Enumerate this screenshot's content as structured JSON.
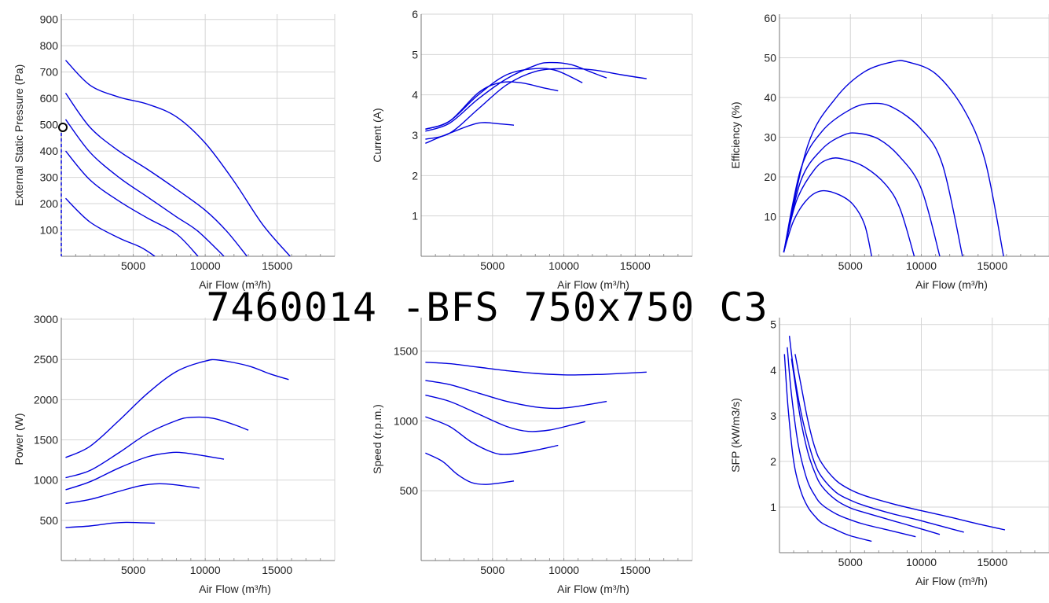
{
  "title": "7460014 -BFS 750x750 C3",
  "colors": {
    "curve": "#0000dd",
    "grid": "#d4d4d4",
    "axis": "#777777",
    "text": "#222222"
  },
  "chart_data": [
    {
      "id": "pressure",
      "type": "line",
      "title": "",
      "xlabel": "Air Flow (m³/h)",
      "ylabel": "External Static Pressure (Pa)",
      "xlim": [
        0,
        19000
      ],
      "ylim": [
        0,
        920
      ],
      "xticks": [
        5000,
        10000,
        15000
      ],
      "yticks": [
        100,
        200,
        300,
        400,
        500,
        600,
        700,
        800,
        900
      ],
      "xgrid": [
        5000,
        10000,
        15000,
        19000
      ],
      "ygrid": [
        100,
        200,
        300,
        400,
        500,
        600,
        700,
        800,
        900
      ],
      "grid": true,
      "operating_point": {
        "x": 0,
        "y": 490
      },
      "series": [
        {
          "x": [
            300,
            2000,
            4000,
            6000,
            8000,
            10000,
            12000,
            14000,
            15900
          ],
          "y": [
            745,
            650,
            605,
            578,
            530,
            430,
            285,
            120,
            0
          ]
        },
        {
          "x": [
            300,
            2000,
            4000,
            6000,
            8000,
            10000,
            11500,
            12900
          ],
          "y": [
            620,
            490,
            400,
            330,
            255,
            175,
            95,
            0
          ]
        },
        {
          "x": [
            300,
            2000,
            4000,
            6000,
            8000,
            9500,
            11300
          ],
          "y": [
            520,
            395,
            300,
            225,
            150,
            95,
            0
          ]
        },
        {
          "x": [
            300,
            2000,
            4000,
            6000,
            8000,
            9500
          ],
          "y": [
            400,
            290,
            210,
            145,
            85,
            0
          ]
        },
        {
          "x": [
            300,
            2000,
            4000,
            5500,
            6500
          ],
          "y": [
            220,
            130,
            70,
            35,
            0
          ]
        }
      ]
    },
    {
      "id": "current",
      "type": "line",
      "title": "",
      "xlabel": "Air Flow (m³/h)",
      "ylabel": "Current (A)",
      "xlim": [
        0,
        19000
      ],
      "ylim": [
        0,
        6
      ],
      "xticks": [
        5000,
        10000,
        15000
      ],
      "yticks": [
        1,
        2,
        3,
        4,
        5,
        6
      ],
      "xgrid": [
        5000,
        10000,
        15000,
        19000
      ],
      "ygrid": [
        1,
        2,
        3,
        4,
        5,
        6
      ],
      "grid": true,
      "series": [
        {
          "x": [
            300,
            2000,
            4000,
            6000,
            8000,
            10000,
            12000,
            14000,
            15800
          ],
          "y": [
            2.9,
            3.05,
            3.65,
            4.25,
            4.58,
            4.65,
            4.62,
            4.5,
            4.4
          ]
        },
        {
          "x": [
            300,
            2000,
            4000,
            6000,
            8000,
            9000,
            10500,
            12000,
            13000
          ],
          "y": [
            3.1,
            3.3,
            3.9,
            4.4,
            4.73,
            4.8,
            4.75,
            4.55,
            4.42
          ]
        },
        {
          "x": [
            300,
            2000,
            4000,
            6000,
            8000,
            9500,
            11300
          ],
          "y": [
            3.15,
            3.35,
            4.0,
            4.5,
            4.65,
            4.6,
            4.3
          ]
        },
        {
          "x": [
            300,
            2000,
            4000,
            5500,
            7000,
            8500,
            9600
          ],
          "y": [
            3.15,
            3.35,
            4.05,
            4.3,
            4.3,
            4.18,
            4.1
          ]
        },
        {
          "x": [
            300,
            2000,
            4000,
            5500,
            6500
          ],
          "y": [
            2.8,
            3.05,
            3.3,
            3.28,
            3.25
          ]
        }
      ]
    },
    {
      "id": "efficiency",
      "type": "line",
      "title": "",
      "xlabel": "Air Flow (m³/h)",
      "ylabel": "Efficiency (%)",
      "xlim": [
        0,
        19000
      ],
      "ylim": [
        0,
        61
      ],
      "xticks": [
        5000,
        10000,
        15000
      ],
      "yticks": [
        10,
        20,
        30,
        40,
        50,
        60
      ],
      "xgrid": [
        5000,
        10000,
        15000,
        19000
      ],
      "ygrid": [
        10,
        20,
        30,
        40,
        50,
        60
      ],
      "grid": true,
      "series": [
        {
          "x": [
            300,
            2000,
            4000,
            6000,
            8000,
            9000,
            11000,
            13000,
            14500,
            15800
          ],
          "y": [
            1,
            28,
            40,
            46.5,
            49,
            49,
            46,
            37,
            24,
            0
          ]
        },
        {
          "x": [
            300,
            1500,
            3000,
            5000,
            6500,
            8000,
            10000,
            11500,
            12900
          ],
          "y": [
            1,
            22,
            31.5,
            37,
            38.5,
            37.5,
            32,
            23,
            0
          ]
        },
        {
          "x": [
            300,
            1500,
            3000,
            4500,
            5500,
            7000,
            8500,
            10000,
            11300
          ],
          "y": [
            1,
            19,
            27,
            30.5,
            31,
            29.5,
            25,
            17,
            0
          ]
        },
        {
          "x": [
            300,
            1200,
            2500,
            3500,
            4500,
            6000,
            7500,
            8500,
            9500
          ],
          "y": [
            1,
            14,
            22,
            24.5,
            24.5,
            22.5,
            18,
            12,
            0
          ]
        },
        {
          "x": [
            300,
            1000,
            2000,
            3000,
            4200,
            5200,
            6000,
            6500
          ],
          "y": [
            1,
            9,
            14.5,
            16.5,
            15.5,
            13,
            8,
            0
          ]
        }
      ]
    },
    {
      "id": "power",
      "type": "line",
      "title": "",
      "xlabel": "Air Flow (m³/h)",
      "ylabel": "Power (W)",
      "xlim": [
        0,
        19000
      ],
      "ylim": [
        0,
        3020
      ],
      "xticks": [
        5000,
        10000,
        15000
      ],
      "yticks": [
        500,
        1000,
        1500,
        2000,
        2500,
        3000
      ],
      "xgrid": [
        5000,
        10000,
        15000,
        19000
      ],
      "ygrid": [
        500,
        1000,
        1500,
        2000,
        2500,
        3000
      ],
      "grid": true,
      "series": [
        {
          "x": [
            300,
            2000,
            4000,
            6000,
            8000,
            10000,
            11000,
            13000,
            14500,
            15800
          ],
          "y": [
            1280,
            1420,
            1740,
            2080,
            2350,
            2480,
            2490,
            2420,
            2320,
            2250
          ]
        },
        {
          "x": [
            300,
            2000,
            4000,
            6000,
            8000,
            9000,
            10500,
            12000,
            13000
          ],
          "y": [
            1030,
            1120,
            1340,
            1580,
            1740,
            1780,
            1770,
            1690,
            1620
          ]
        },
        {
          "x": [
            300,
            2000,
            4000,
            6000,
            7500,
            8500,
            10000,
            11300
          ],
          "y": [
            880,
            980,
            1150,
            1290,
            1340,
            1340,
            1300,
            1260
          ]
        },
        {
          "x": [
            300,
            2000,
            4000,
            5500,
            6800,
            8000,
            9600
          ],
          "y": [
            710,
            760,
            860,
            930,
            955,
            940,
            900
          ]
        },
        {
          "x": [
            300,
            2000,
            3500,
            4500,
            5500,
            6500
          ],
          "y": [
            410,
            430,
            465,
            475,
            470,
            465
          ]
        }
      ]
    },
    {
      "id": "speed",
      "type": "line",
      "title": "",
      "xlabel": "Air Flow (m³/h)",
      "ylabel": "Speed (r.p.m.)",
      "xlim": [
        0,
        19000
      ],
      "ylim": [
        0,
        1740
      ],
      "xticks": [
        5000,
        10000,
        15000
      ],
      "yticks": [
        500,
        1000,
        1500
      ],
      "xgrid": [
        5000,
        10000,
        15000,
        19000
      ],
      "ygrid": [
        500,
        1000,
        1500
      ],
      "grid": true,
      "series": [
        {
          "x": [
            300,
            2000,
            4000,
            6000,
            8000,
            10000,
            11000,
            13000,
            15800
          ],
          "y": [
            1420,
            1410,
            1385,
            1360,
            1340,
            1330,
            1330,
            1335,
            1350
          ]
        },
        {
          "x": [
            300,
            2000,
            4000,
            6000,
            8000,
            9500,
            11000,
            13000
          ],
          "y": [
            1290,
            1260,
            1200,
            1140,
            1100,
            1090,
            1105,
            1140
          ]
        },
        {
          "x": [
            300,
            2000,
            4000,
            6000,
            7500,
            9000,
            10500,
            11500
          ],
          "y": [
            1185,
            1140,
            1050,
            960,
            925,
            935,
            970,
            995
          ]
        },
        {
          "x": [
            300,
            2000,
            3500,
            5000,
            6000,
            7500,
            9600
          ],
          "y": [
            1030,
            960,
            850,
            775,
            760,
            780,
            825
          ]
        },
        {
          "x": [
            300,
            1500,
            2500,
            3500,
            4500,
            5500,
            6500
          ],
          "y": [
            770,
            710,
            620,
            560,
            545,
            555,
            570
          ]
        }
      ]
    },
    {
      "id": "sfp",
      "type": "line",
      "title": "",
      "xlabel": "Air Flow (m³/h)",
      "ylabel": "SFP (kW/m3/s)",
      "xlim": [
        0,
        19000
      ],
      "ylim": [
        0,
        5.15
      ],
      "xticks": [
        5000,
        10000,
        15000
      ],
      "yticks": [
        1,
        2,
        3,
        4,
        5
      ],
      "xgrid": [
        5000,
        10000,
        15000,
        19000
      ],
      "ygrid": [
        1,
        2,
        3,
        4,
        5
      ],
      "grid": true,
      "series": [
        {
          "x": [
            1100,
            1500,
            2000,
            2500,
            3000,
            4000,
            5000,
            6000,
            8000,
            10000,
            12000,
            14000,
            15900
          ],
          "y": [
            4.35,
            3.7,
            2.9,
            2.3,
            1.95,
            1.58,
            1.38,
            1.25,
            1.07,
            0.92,
            0.78,
            0.63,
            0.5
          ]
        },
        {
          "x": [
            700,
            1000,
            1500,
            2000,
            2500,
            3000,
            4000,
            5000,
            6000,
            8000,
            10000,
            12000,
            13000
          ],
          "y": [
            4.75,
            4.0,
            3.1,
            2.45,
            1.95,
            1.65,
            1.32,
            1.15,
            1.03,
            0.85,
            0.7,
            0.53,
            0.45
          ]
        },
        {
          "x": [
            850,
            1200,
            1500,
            2000,
            2500,
            3000,
            4000,
            5000,
            6000,
            8000,
            10000,
            11300
          ],
          "y": [
            4.25,
            3.5,
            2.9,
            2.2,
            1.75,
            1.45,
            1.15,
            0.98,
            0.88,
            0.7,
            0.52,
            0.4
          ]
        },
        {
          "x": [
            550,
            800,
            1200,
            1500,
            2000,
            2500,
            3000,
            4000,
            5000,
            6000,
            8000,
            9600
          ],
          "y": [
            4.5,
            3.6,
            2.6,
            2.1,
            1.55,
            1.25,
            1.05,
            0.85,
            0.72,
            0.62,
            0.47,
            0.35
          ]
        },
        {
          "x": [
            350,
            600,
            1000,
            1500,
            2000,
            2500,
            3000,
            4000,
            5000,
            6500
          ],
          "y": [
            4.35,
            3.2,
            2.0,
            1.35,
            1.0,
            0.8,
            0.65,
            0.5,
            0.37,
            0.25
          ]
        }
      ]
    }
  ]
}
